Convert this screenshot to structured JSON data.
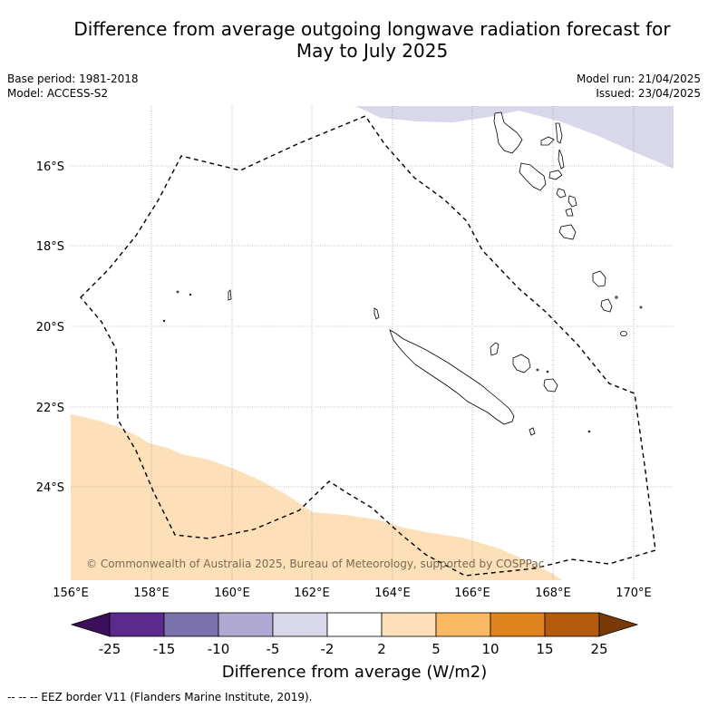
{
  "title": {
    "line1": "Difference from average outgoing longwave radiation forecast for",
    "line2": "May to July 2025"
  },
  "meta_left": {
    "base_period": "Base period: 1981-2018",
    "model": "Model: ACCESS-S2"
  },
  "meta_right": {
    "model_run": "Model run: 21/04/2025",
    "issued": "Issued: 23/04/2025"
  },
  "map": {
    "lat_labels": [
      "16°S",
      "18°S",
      "20°S",
      "22°S",
      "24°S"
    ],
    "lon_labels": [
      "156°E",
      "158°E",
      "160°E",
      "162°E",
      "164°E",
      "166°E",
      "168°E",
      "170°E"
    ],
    "copyright": "© Commonwealth of Australia 2025, Bureau of Meteorology, supported by COSPPac",
    "colors": {
      "negative_anomaly": "#d8d8ea",
      "positive_anomaly": "#fde0b8",
      "eez_line": "#000000"
    }
  },
  "colorbar": {
    "ticks": [
      "-25",
      "-15",
      "-10",
      "-5",
      "-2",
      "2",
      "5",
      "10",
      "15",
      "25"
    ],
    "colors": [
      "#3b0f5a",
      "#5a2a8c",
      "#7b72ad",
      "#b0a9d2",
      "#d8d8ea",
      "#ffffff",
      "#fde0b8",
      "#fbb862",
      "#e0821d",
      "#b35a0d",
      "#7a3a07"
    ],
    "label": "Difference from average (W/m2)"
  },
  "footnote": "--  --  -- EEZ border V11 (Flanders Marine Institute, 2019)."
}
